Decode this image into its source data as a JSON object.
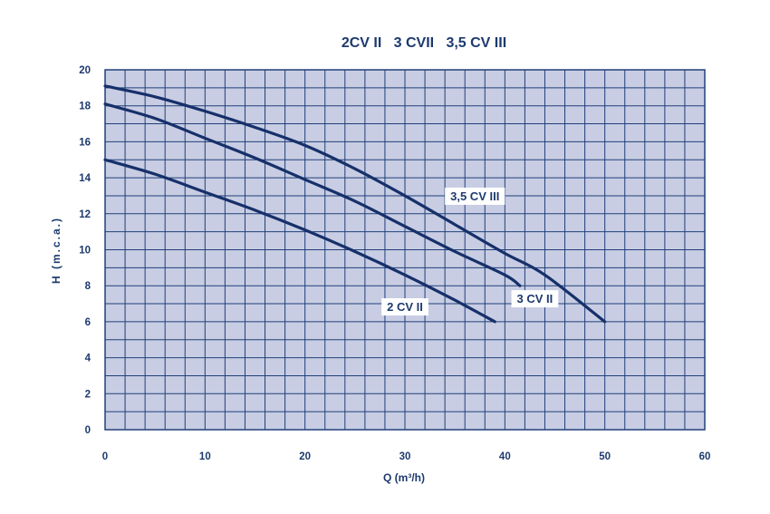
{
  "colors": {
    "plot_bg": "#c8cde3",
    "grid": "#20407a",
    "curve": "#16306a",
    "text": "#1d3a6e",
    "label_bg": "#ffffff"
  },
  "chart_data": {
    "type": "line",
    "title": "2CV II   3 CVII   3,5 CV III",
    "xlabel": "Q (m³/h)",
    "ylabel": "H (m.c.a.)",
    "xlim": [
      0,
      60
    ],
    "ylim": [
      0,
      20
    ],
    "xticks": [
      0,
      10,
      20,
      30,
      40,
      50,
      60
    ],
    "yticks": [
      0,
      2,
      4,
      6,
      8,
      10,
      12,
      14,
      16,
      18,
      20
    ],
    "x_minor_step": 2,
    "y_minor_step": 1,
    "grid": true,
    "series": [
      {
        "name": "2 CV II",
        "x": [
          0,
          5,
          10,
          15,
          20,
          25,
          30,
          35,
          39
        ],
        "y": [
          15,
          14.2,
          13.2,
          12.2,
          11.1,
          9.9,
          8.6,
          7.2,
          6
        ]
      },
      {
        "name": "3 CV II",
        "x": [
          0,
          5,
          10,
          15,
          20,
          25,
          30,
          35,
          40,
          41.5
        ],
        "y": [
          18.1,
          17.3,
          16.2,
          15.1,
          13.9,
          12.7,
          11.3,
          9.9,
          8.6,
          8
        ]
      },
      {
        "name": "3,5 CV III",
        "x": [
          0,
          5,
          10,
          15,
          20,
          25,
          30,
          35,
          40,
          44,
          50
        ],
        "y": [
          19.1,
          18.5,
          17.7,
          16.8,
          15.8,
          14.5,
          13.0,
          11.4,
          9.8,
          8.6,
          6
        ]
      }
    ]
  }
}
